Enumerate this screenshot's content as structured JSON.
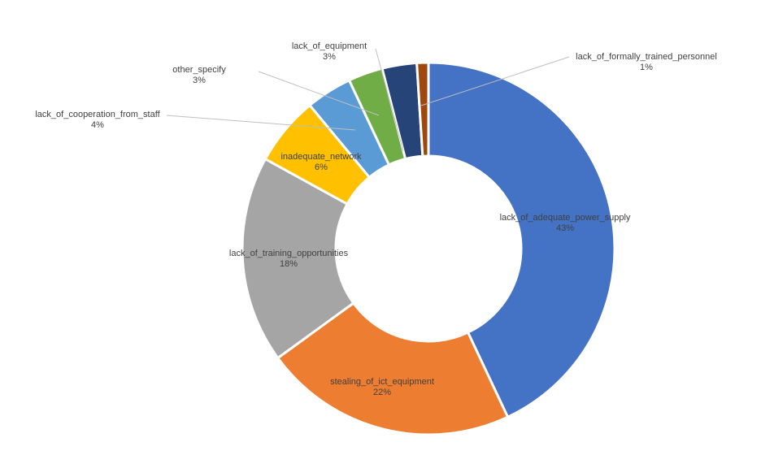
{
  "chart_data": {
    "type": "donut",
    "categories": [
      "lack_of_adequate_power_supply",
      "stealing_of_ict_equipment",
      "lack_of_training_opportunities",
      "inadequate_network",
      "lack_of_cooperation_from_staff",
      "other_specify",
      "lack_of_equipment",
      "lack_of_formally_trained_personnel"
    ],
    "values": [
      43,
      22,
      18,
      6,
      4,
      3,
      3,
      1
    ],
    "value_labels": [
      "43%",
      "22%",
      "18%",
      "6%",
      "4%",
      "3%",
      "3%",
      "1%"
    ],
    "colors": [
      "#4472c4",
      "#ed7d31",
      "#a5a5a5",
      "#ffc000",
      "#5b9bd5",
      "#70ad47",
      "#264478",
      "#9e480e"
    ]
  }
}
